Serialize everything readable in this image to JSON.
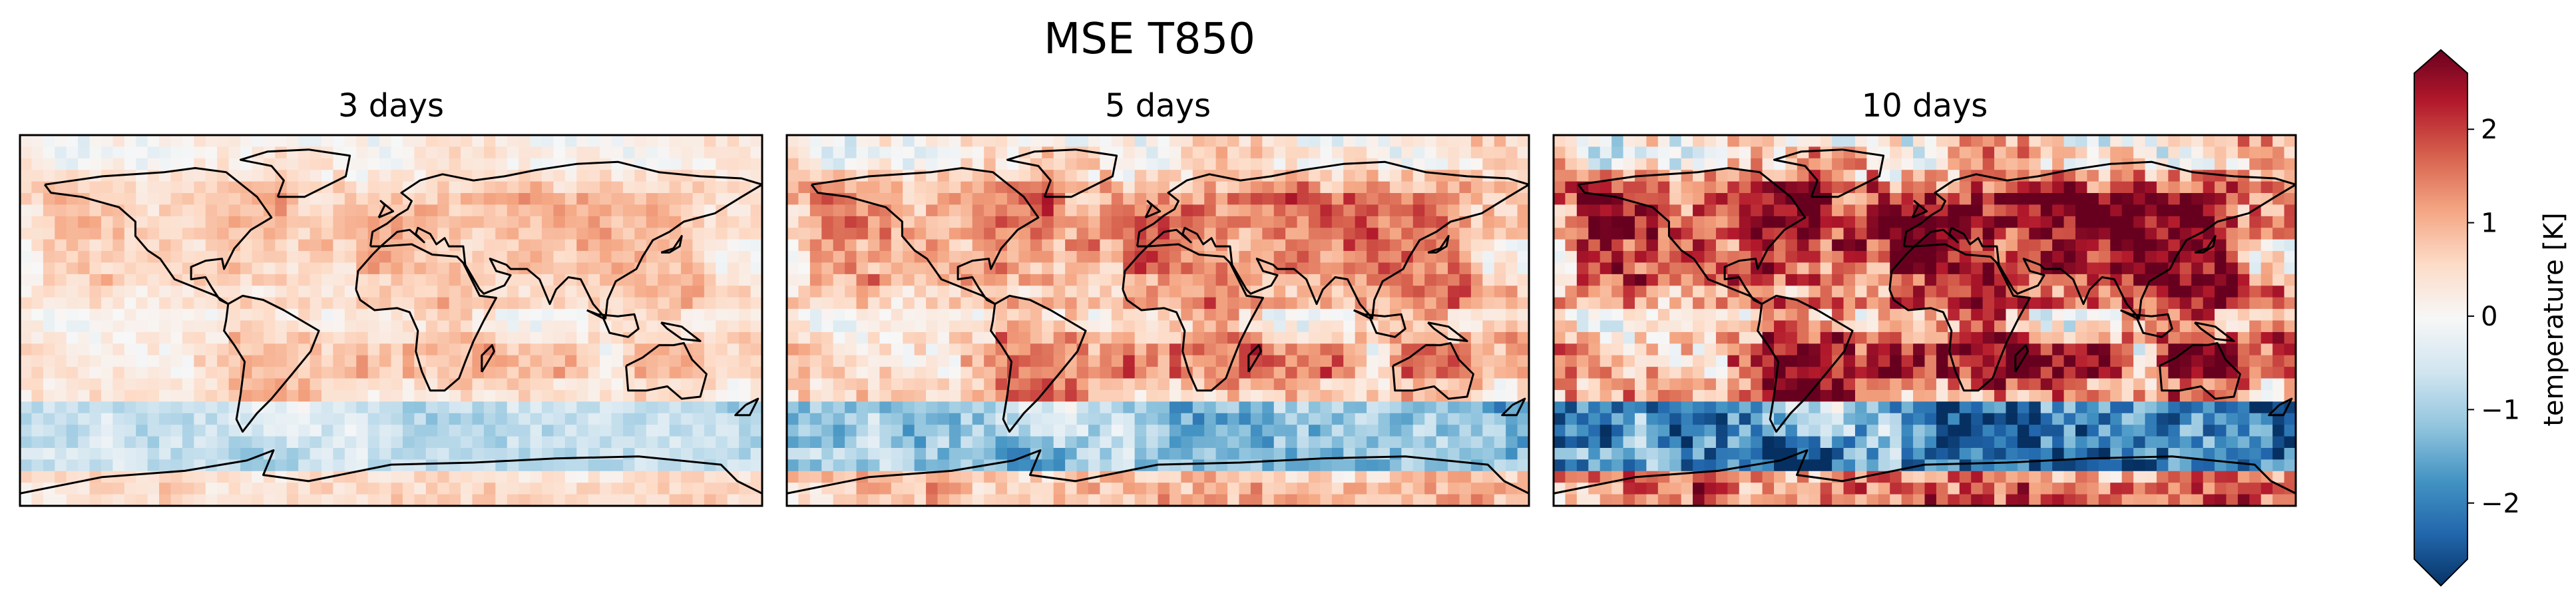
{
  "chart_data": {
    "type": "heatmap",
    "title": "MSE T850",
    "panels": [
      {
        "title": "3 days",
        "scale": 0.6
      },
      {
        "title": "5 days",
        "scale": 1.0
      },
      {
        "title": "10 days",
        "scale": 1.75
      }
    ],
    "grid": {
      "columns": 64,
      "rows": 32
    },
    "colorbar": {
      "label": "temperature [K]",
      "range": [
        -2.6,
        2.6
      ],
      "ticks": [
        -2,
        -1,
        0,
        1,
        2
      ],
      "tick_labels": [
        "−2",
        "−1",
        "0",
        "1",
        "2"
      ],
      "extend": "both",
      "colormap": "RdBu_r"
    },
    "colors": {
      "min": "#053061",
      "mid": "#f7f7f7",
      "max": "#67001f"
    },
    "coastlines": true
  }
}
